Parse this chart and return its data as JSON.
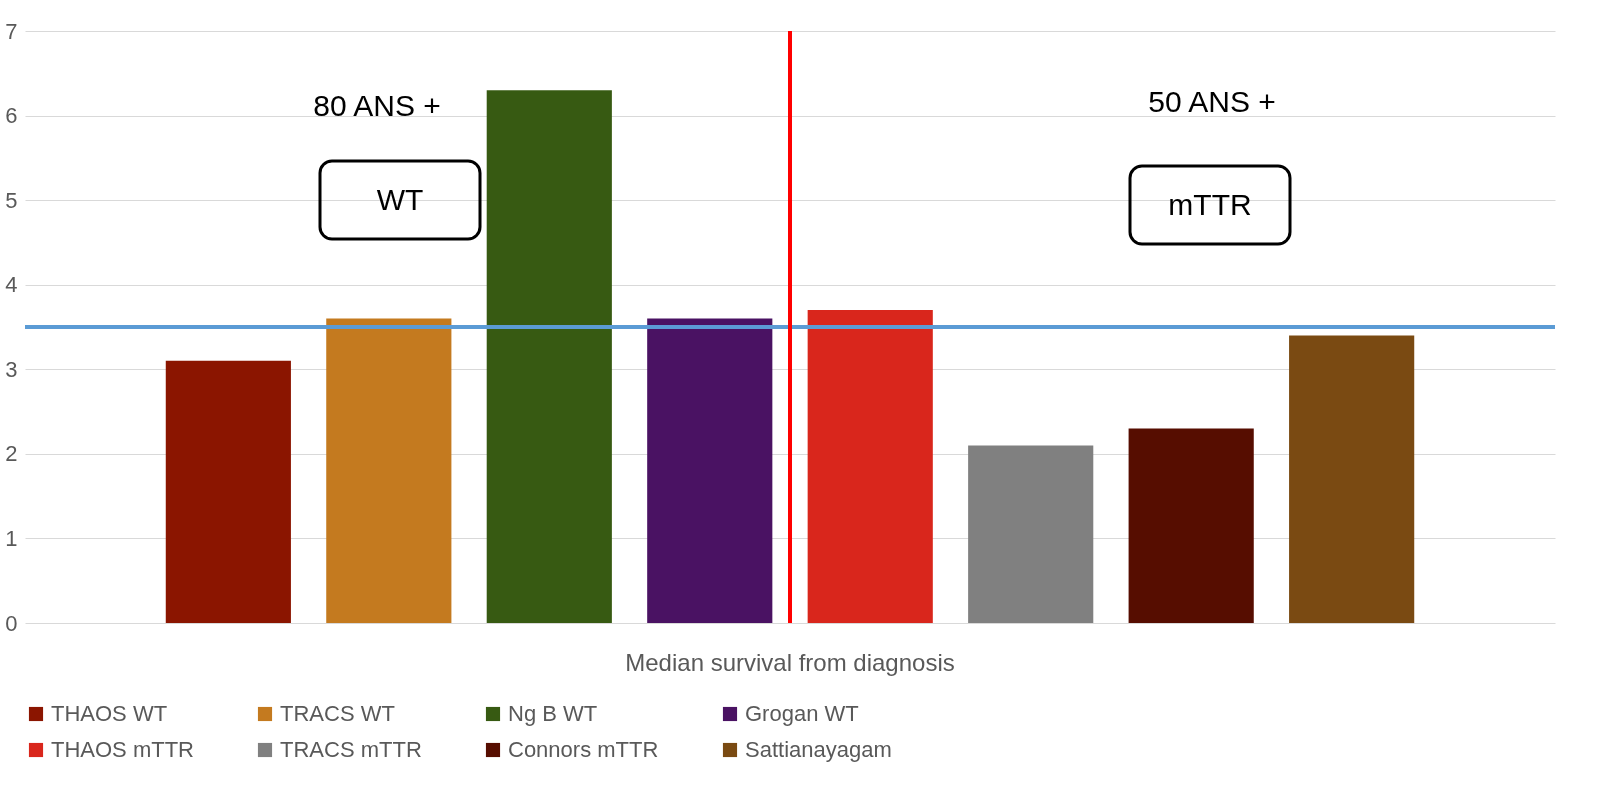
{
  "chart_data": {
    "type": "bar",
    "categories": [
      "Median survival from diagnosis"
    ],
    "series": [
      {
        "name": "THAOS WT",
        "color": "#8b1500",
        "values": [
          3.1
        ]
      },
      {
        "name": "TRACS WT",
        "color": "#c47a1f",
        "values": [
          3.6
        ]
      },
      {
        "name": "Ng B WT",
        "color": "#375a12",
        "values": [
          6.3
        ]
      },
      {
        "name": "Grogan WT",
        "color": "#4a1263",
        "values": [
          3.6
        ]
      },
      {
        "name": "THAOS mTTR",
        "color": "#d9261c",
        "values": [
          3.7
        ]
      },
      {
        "name": "TRACS mTTR",
        "color": "#808080",
        "values": [
          2.1
        ]
      },
      {
        "name": "Connors mTTR",
        "color": "#560d00",
        "values": [
          2.3
        ]
      },
      {
        "name": "Sattianayagam",
        "color": "#7a4a12",
        "values": [
          3.4
        ]
      }
    ],
    "ylim": [
      0,
      7
    ],
    "yticks": [
      0,
      1,
      2,
      3,
      4,
      5,
      6,
      7
    ],
    "grid": "y",
    "legend": "bottom",
    "ref_lines": [
      {
        "axis": "y",
        "value": 3.5,
        "color": "#5b9bd5"
      },
      {
        "axis": "x",
        "value": "Median survival from diagnosis",
        "color": "#ff0000"
      }
    ],
    "annotations": [
      "80 ANS +",
      "WT",
      "50 ANS +",
      "mTTR"
    ]
  }
}
